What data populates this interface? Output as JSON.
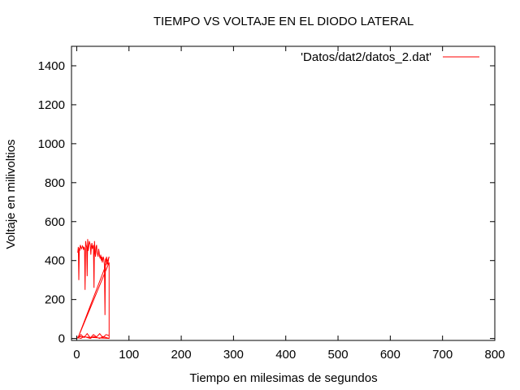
{
  "chart_data": {
    "type": "line",
    "title": "TIEMPO VS VOLTAJE EN EL DIODO LATERAL",
    "xlabel": "Tiempo en milesimas de segundos",
    "ylabel": "Voltaje en milivoltios",
    "xlim": [
      -10,
      800
    ],
    "ylim": [
      -10,
      1500
    ],
    "xticks": [
      0,
      100,
      200,
      300,
      400,
      500,
      600,
      700,
      800
    ],
    "yticks": [
      0,
      200,
      400,
      600,
      800,
      1000,
      1200,
      1400
    ],
    "xtick_labels": [
      "0",
      "100",
      "200",
      "300",
      "400",
      "500",
      "600",
      "700",
      "800"
    ],
    "ytick_labels": [
      "0",
      "200",
      "400",
      "600",
      "800",
      "1000",
      "1200",
      "1400"
    ],
    "grid": false,
    "legend_position": "top-right",
    "series": [
      {
        "name": "'Datos/dat2/datos_2.dat'",
        "color": "#ff0000",
        "x": [
          2,
          3,
          4,
          5,
          6,
          7,
          8,
          9,
          10,
          11,
          12,
          13,
          14,
          15,
          16,
          17,
          18,
          19,
          20,
          21,
          22,
          23,
          24,
          25,
          26,
          27,
          28,
          29,
          30,
          31,
          32,
          33,
          34,
          35,
          36,
          37,
          38,
          39,
          40,
          41,
          42,
          43,
          44,
          45,
          46,
          47,
          48,
          49,
          50,
          51,
          52,
          53,
          54,
          55,
          56,
          57,
          58,
          59,
          60,
          61,
          62,
          2,
          8,
          14,
          20,
          26,
          32,
          38,
          44,
          50,
          56,
          62,
          62,
          56,
          50,
          44,
          38,
          32,
          26,
          20,
          14,
          8,
          2,
          2,
          62,
          62,
          2
        ],
        "y": [
          440,
          470,
          300,
          460,
          455,
          480,
          470,
          460,
          465,
          475,
          470,
          455,
          470,
          460,
          250,
          500,
          480,
          470,
          320,
          510,
          450,
          470,
          500,
          490,
          480,
          430,
          470,
          490,
          460,
          470,
          480,
          260,
          500,
          450,
          420,
          470,
          480,
          440,
          430,
          420,
          460,
          440,
          420,
          410,
          430,
          400,
          420,
          390,
          410,
          420,
          400,
          380,
          120,
          410,
          390,
          420,
          400,
          380,
          390,
          410,
          420,
          0,
          20,
          5,
          25,
          3,
          20,
          8,
          25,
          4,
          20,
          15,
          0,
          5,
          10,
          0,
          5,
          10,
          0,
          5,
          10,
          0,
          5,
          0,
          390,
          0,
          10
        ]
      }
    ]
  }
}
